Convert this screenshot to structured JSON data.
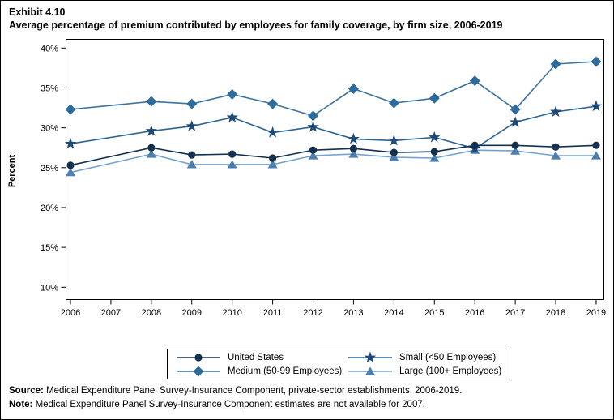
{
  "title": {
    "exhibit": "Exhibit 4.10",
    "subtitle": "Average percentage of premium contributed by employees for family coverage, by firm size, 2006-2019"
  },
  "footer": {
    "source_label": "Source:",
    "source_text": " Medical Expenditure Panel Survey-Insurance Component, private-sector establishments, 2006-2019.",
    "note_label": "Note:",
    "note_text": " Medical Expenditure Panel Survey-Insurance Component estimates are not available for 2007."
  },
  "chart_data": {
    "type": "line",
    "title": "Average percentage of premium contributed by employees for family coverage, by firm size, 2006-2019",
    "xlabel": "",
    "ylabel": "Percent",
    "x": [
      2006,
      2007,
      2008,
      2009,
      2010,
      2011,
      2012,
      2013,
      2014,
      2015,
      2016,
      2017,
      2018,
      2019
    ],
    "x_tick_labels": [
      "2006",
      "2007",
      "2008",
      "2009",
      "2010",
      "2011",
      "2012",
      "2013",
      "2014",
      "2015",
      "2016",
      "2017",
      "2018",
      "2019"
    ],
    "y_ticks": [
      40,
      35,
      30,
      25,
      20,
      15,
      10
    ],
    "y_tick_labels": [
      "40%",
      "35%",
      "30%",
      "25%",
      "20%",
      "15%",
      "10%"
    ],
    "ylim": [
      8.5,
      41.2
    ],
    "grid": false,
    "legend_position": "bottom",
    "missing_years": [
      2007
    ],
    "note": "No markers or data for 2007; lines connect 2006 directly to 2008",
    "series": [
      {
        "name": "United States",
        "marker": "circle",
        "color": "#13304f",
        "line_color": "#13304f",
        "values": [
          25.3,
          null,
          27.5,
          26.6,
          26.7,
          26.2,
          27.2,
          27.4,
          26.9,
          27.0,
          27.8,
          27.8,
          27.6,
          27.8
        ]
      },
      {
        "name": "Small (<50 Employees)",
        "marker": "star",
        "color": "#1d4a78",
        "line_color": "#2d6493",
        "values": [
          28.0,
          null,
          29.6,
          30.2,
          31.3,
          29.4,
          30.1,
          28.6,
          28.4,
          28.8,
          27.4,
          30.7,
          32.0,
          32.7
        ]
      },
      {
        "name": "Medium (50-99 Employees)",
        "marker": "diamond",
        "color": "#2d6b9d",
        "line_color": "#3a72a0",
        "values": [
          32.3,
          null,
          33.3,
          33.0,
          34.2,
          33.0,
          31.5,
          34.9,
          33.1,
          33.7,
          35.9,
          32.3,
          38.0,
          38.3
        ]
      },
      {
        "name": "Large (100+ Employees)",
        "marker": "triangle",
        "color": "#4c7fb0",
        "line_color": "#74a3cc",
        "values": [
          24.4,
          null,
          26.7,
          25.4,
          25.4,
          25.4,
          26.5,
          26.7,
          26.3,
          26.2,
          27.2,
          27.1,
          26.5,
          26.5
        ]
      }
    ]
  }
}
